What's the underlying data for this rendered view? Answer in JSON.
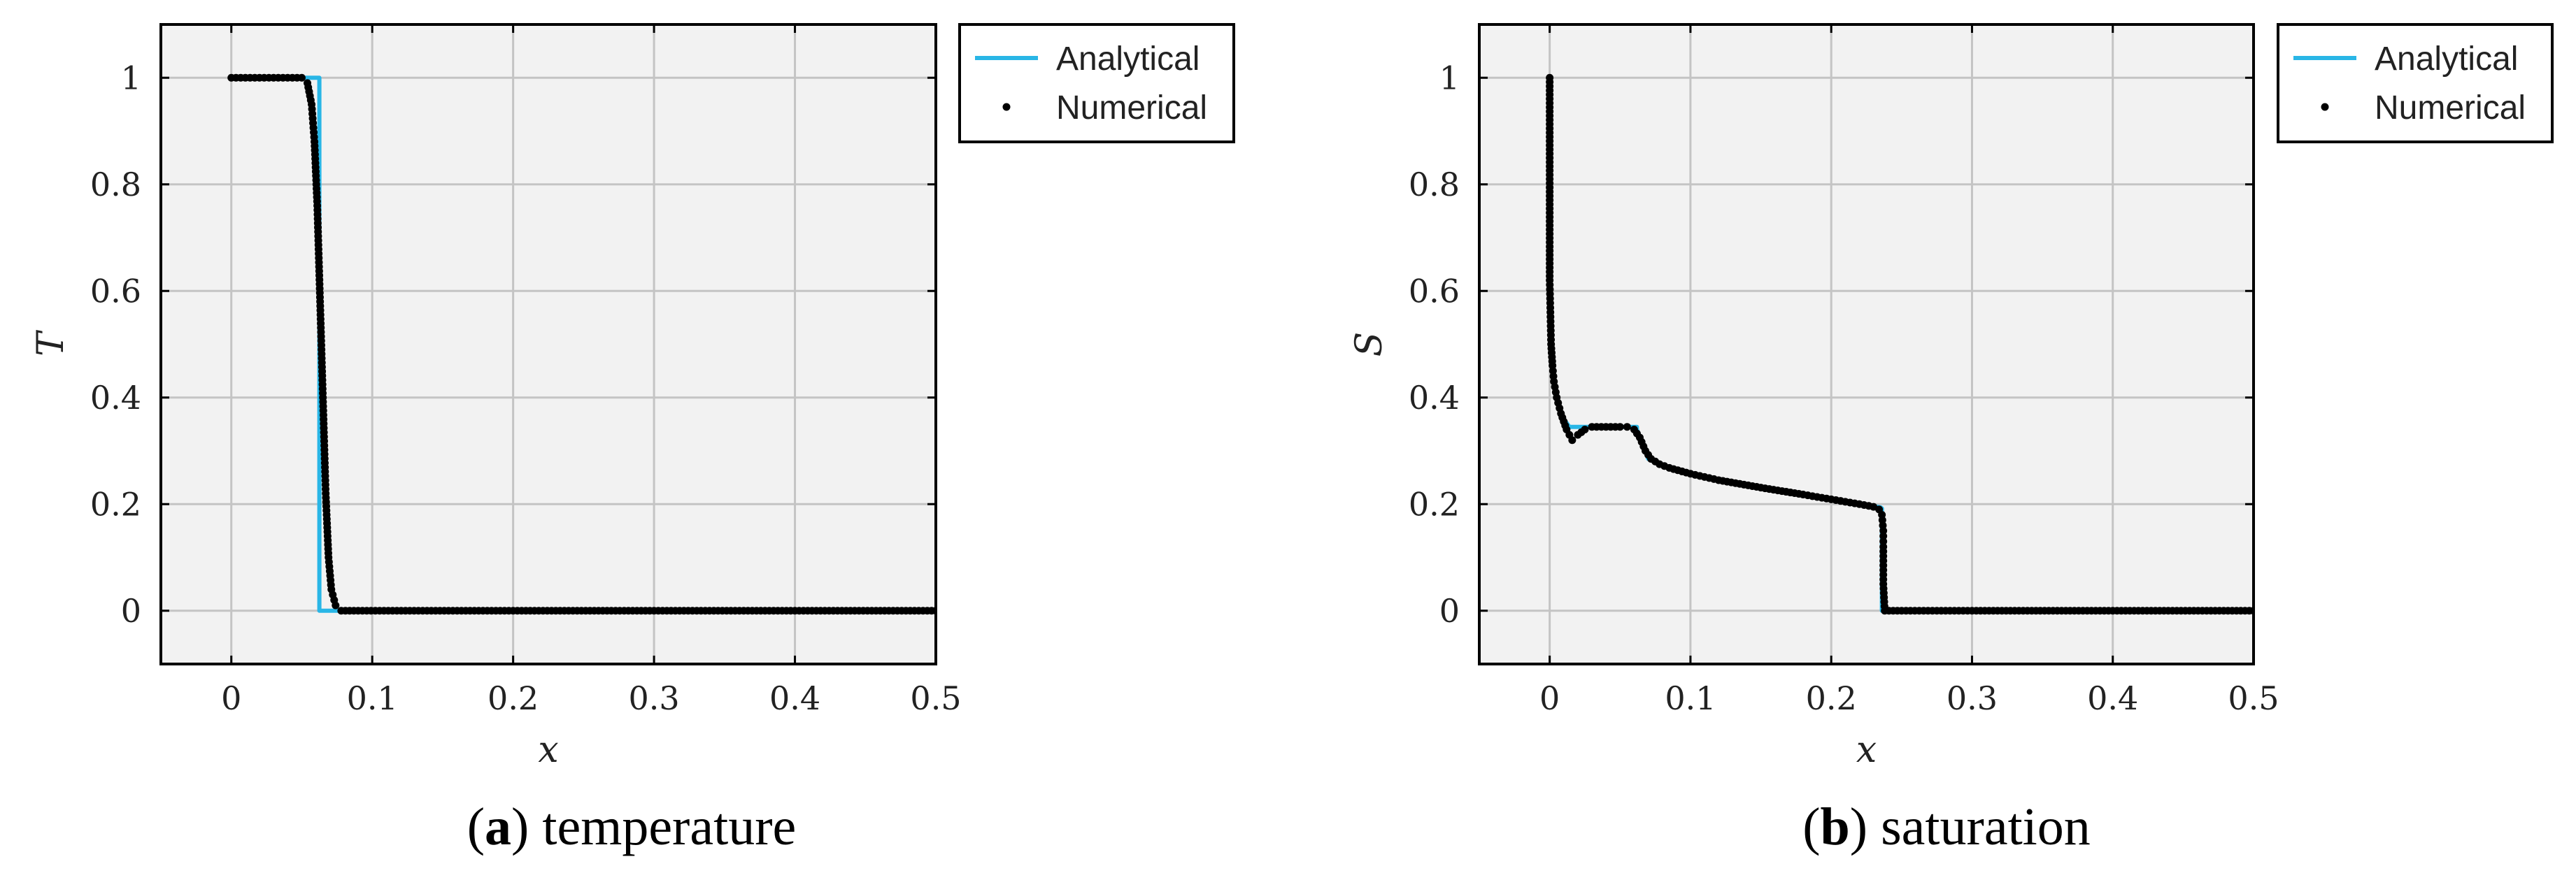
{
  "chart_data": [
    {
      "type": "line",
      "xlabel": "x",
      "ylabel": "T",
      "xlim": [
        -0.05,
        0.5
      ],
      "ylim": [
        -0.1,
        1.1
      ],
      "xticks": [
        0,
        0.1,
        0.2,
        0.3,
        0.4,
        0.5
      ],
      "xtick_labels": [
        "0",
        "0.1",
        "0.2",
        "0.3",
        "0.4",
        "0.5"
      ],
      "yticks": [
        0,
        0.2,
        0.4,
        0.6,
        0.8,
        1
      ],
      "ytick_labels": [
        "0",
        "0.2",
        "0.4",
        "0.6",
        "0.8",
        "1"
      ],
      "grid": true,
      "legend": "outside-top-right",
      "caption_letter": "a",
      "caption_text": "temperature",
      "series": [
        {
          "name": "Analytical",
          "style": "line",
          "color": "#29b6e6",
          "x": [
            0,
            0.0625,
            0.0625,
            0.5
          ],
          "y": [
            1,
            1,
            0,
            0
          ]
        },
        {
          "name": "Numerical",
          "style": "markers",
          "color": "#000000",
          "x": [
            0,
            0.02,
            0.04,
            0.05,
            0.054,
            0.057,
            0.059,
            0.061,
            0.063,
            0.065,
            0.067,
            0.069,
            0.071,
            0.074,
            0.078,
            0.09,
            0.2,
            0.3,
            0.4,
            0.5
          ],
          "y": [
            1,
            1,
            1,
            1,
            0.99,
            0.95,
            0.88,
            0.76,
            0.58,
            0.4,
            0.22,
            0.1,
            0.04,
            0.01,
            0,
            0,
            0,
            0,
            0,
            0
          ]
        }
      ]
    },
    {
      "type": "line",
      "xlabel": "x",
      "ylabel": "S",
      "xlim": [
        -0.05,
        0.5
      ],
      "ylim": [
        -0.1,
        1.1
      ],
      "xticks": [
        0,
        0.1,
        0.2,
        0.3,
        0.4,
        0.5
      ],
      "xtick_labels": [
        "0",
        "0.1",
        "0.2",
        "0.3",
        "0.4",
        "0.5"
      ],
      "yticks": [
        0,
        0.2,
        0.4,
        0.6,
        0.8,
        1
      ],
      "ytick_labels": [
        "0",
        "0.2",
        "0.4",
        "0.6",
        "0.8",
        "1"
      ],
      "grid": true,
      "legend": "outside-top-right",
      "caption_letter": "b",
      "caption_text": "saturation",
      "series": [
        {
          "name": "Analytical",
          "style": "line",
          "color": "#29b6e6",
          "x": [
            0,
            0,
            0.001,
            0.002,
            0.004,
            0.007,
            0.01,
            0.014,
            0.02,
            0.03,
            0.04,
            0.05,
            0.062,
            0.062,
            0.07,
            0.08,
            0.1,
            0.12,
            0.15,
            0.18,
            0.2,
            0.22,
            0.235,
            0.236,
            0.236,
            0.5
          ],
          "y": [
            1,
            0.62,
            0.5,
            0.45,
            0.41,
            0.38,
            0.36,
            0.345,
            0.345,
            0.345,
            0.345,
            0.345,
            0.345,
            0.34,
            0.285,
            0.272,
            0.257,
            0.245,
            0.231,
            0.218,
            0.209,
            0.2,
            0.194,
            0.192,
            0,
            0
          ]
        },
        {
          "name": "Numerical",
          "style": "markers",
          "color": "#000000",
          "x": [
            0,
            0,
            0.0005,
            0.001,
            0.002,
            0.003,
            0.005,
            0.008,
            0.012,
            0.016,
            0.02,
            0.025,
            0.03,
            0.04,
            0.05,
            0.055,
            0.06,
            0.064,
            0.068,
            0.072,
            0.078,
            0.085,
            0.1,
            0.12,
            0.15,
            0.18,
            0.2,
            0.22,
            0.23,
            0.234,
            0.236,
            0.237,
            0.237,
            0.237,
            0.238,
            0.25,
            0.3,
            0.4,
            0.5
          ],
          "y": [
            1,
            0.62,
            0.56,
            0.5,
            0.46,
            0.43,
            0.4,
            0.37,
            0.34,
            0.32,
            0.33,
            0.34,
            0.345,
            0.345,
            0.345,
            0.345,
            0.34,
            0.325,
            0.3,
            0.285,
            0.275,
            0.268,
            0.257,
            0.245,
            0.231,
            0.218,
            0.209,
            0.2,
            0.195,
            0.19,
            0.18,
            0.15,
            0.12,
            0.05,
            0,
            0,
            0,
            0,
            0
          ]
        }
      ]
    }
  ]
}
